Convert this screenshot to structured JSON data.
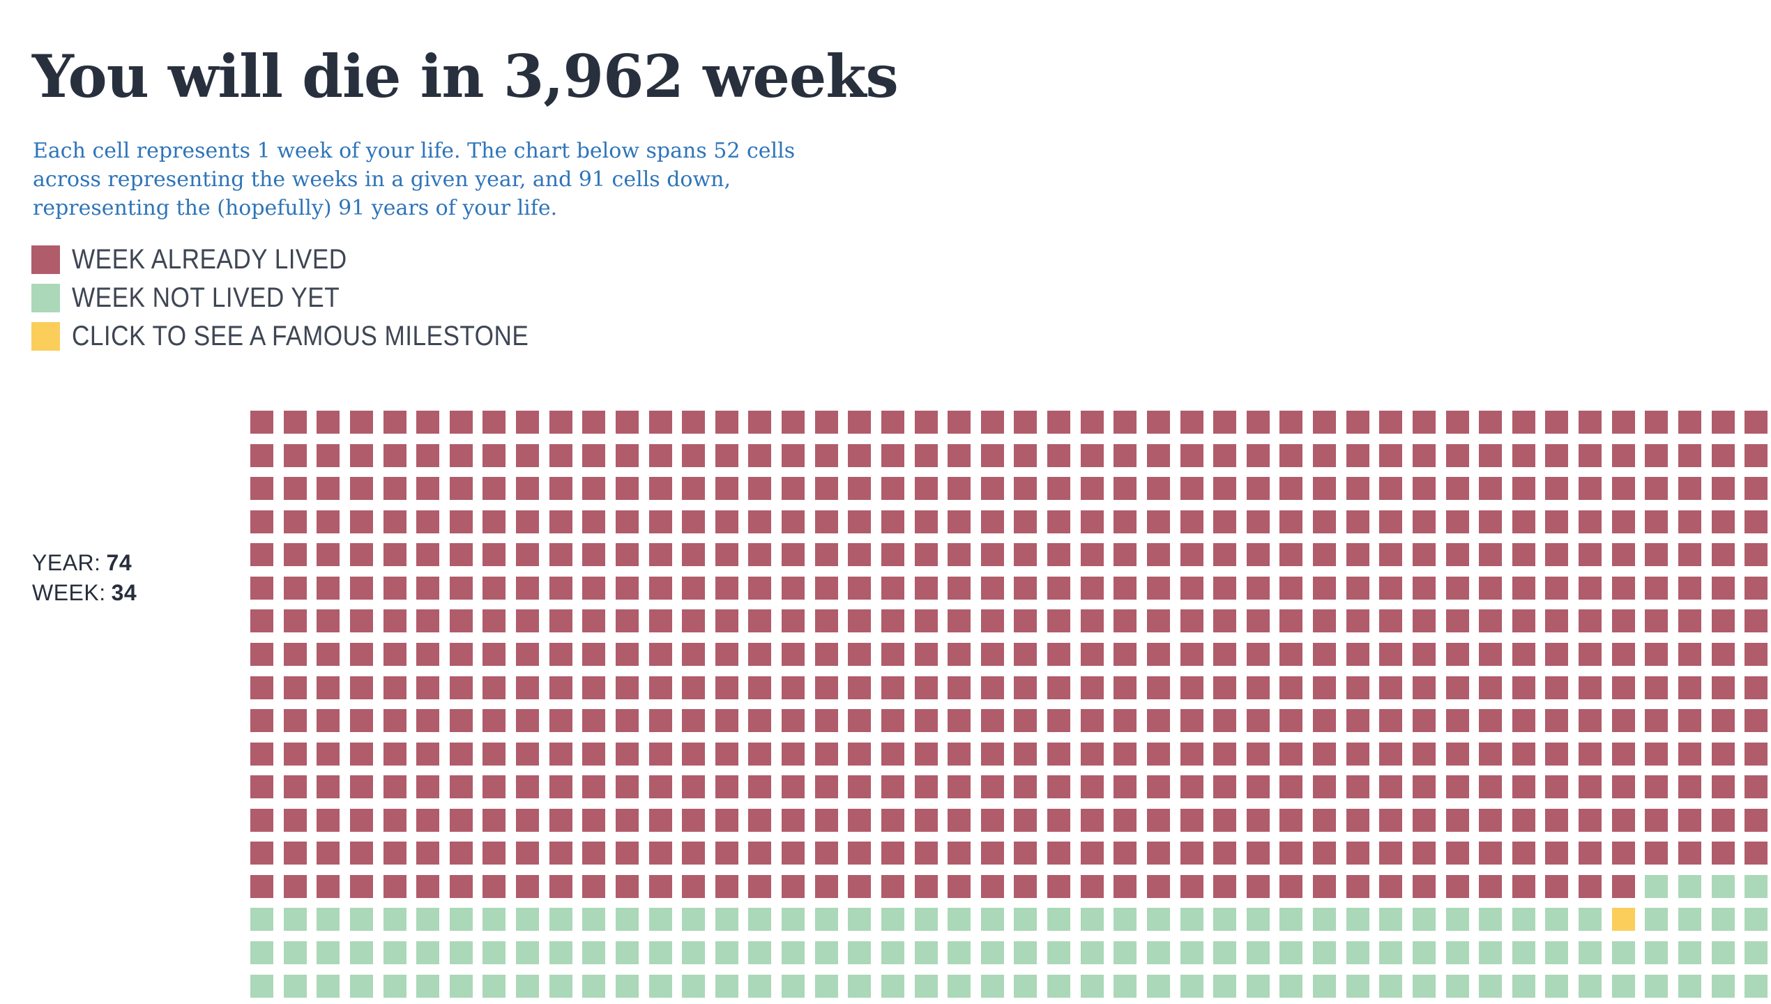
{
  "page": {
    "title": {
      "prefix": "You will die in ",
      "weeks_remaining": "3,962",
      "suffix": " weeks"
    },
    "description": {
      "line1": "Each cell represents 1 week of your life. The chart below spans 52 cells",
      "line2": "across representing the weeks in a given year, and 91 cells down,",
      "line3": "representing the (hopefully) 91 years of your life."
    },
    "legend": {
      "items": [
        {
          "key": "lived",
          "label": "WEEK ALREADY LIVED",
          "color": "#B15C6B"
        },
        {
          "key": "not_lived",
          "label": "WEEK NOT LIVED YET",
          "color": "#ABD8B8"
        },
        {
          "key": "milestone",
          "label": "CLICK TO SEE A FAMOUS MILESTONE",
          "color": "#FBCE5B"
        }
      ]
    },
    "position_indicator": {
      "year_label": "YEAR:",
      "year_value": "74",
      "week_label": "WEEK:",
      "week_value": "34"
    }
  },
  "chart_data": {
    "type": "heatmap",
    "subtype": "waffle-life-calendar",
    "title": "You will die in 3,962 weeks",
    "cell_unit": "1 week of life",
    "total_columns": 52,
    "total_rows": 91,
    "visible_columns": 46,
    "visible_rows": 18,
    "weeks_remaining": 3962,
    "current_year": 74,
    "current_week": 34,
    "full_lived_row_count": 14,
    "transition_row": {
      "index": 14,
      "lived_through_column": 41
    },
    "milestone_cell": {
      "row": 15,
      "column": 41
    },
    "colors": {
      "lived": "#B15C6B",
      "not_lived": "#ABD8B8",
      "milestone": "#FBCE5B"
    },
    "legend_position": "top-left",
    "legend_entries": [
      "WEEK ALREADY LIVED",
      "WEEK NOT LIVED YET",
      "CLICK TO SEE A FAMOUS MILESTONE"
    ]
  }
}
